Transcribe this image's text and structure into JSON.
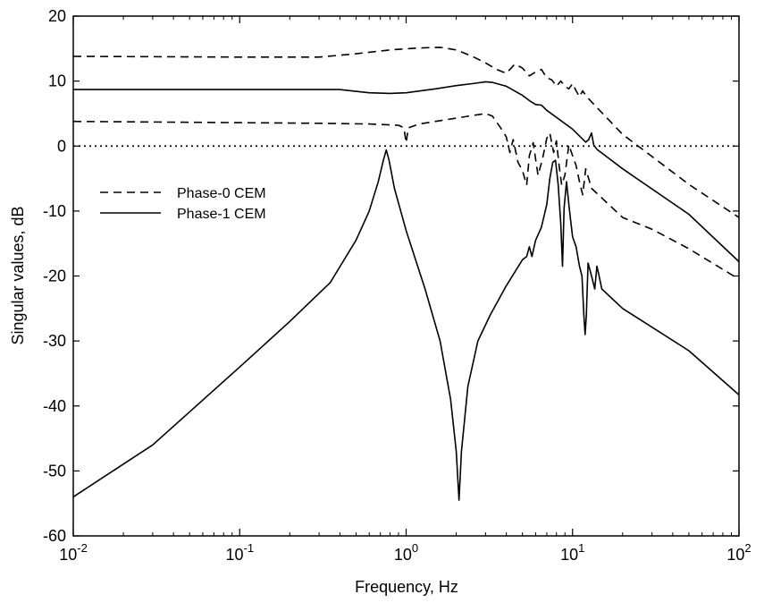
{
  "chart_data": {
    "type": "line",
    "title": "",
    "xlabel": "Frequency, Hz",
    "ylabel": "Singular values, dB",
    "xscale": "log",
    "xlim": [
      0.01,
      100
    ],
    "ylim": [
      -60,
      20
    ],
    "x_ticks": [
      {
        "value": 0.01,
        "base": "10",
        "exp": "-2"
      },
      {
        "value": 0.1,
        "base": "10",
        "exp": "-1"
      },
      {
        "value": 1,
        "base": "10",
        "exp": "0"
      },
      {
        "value": 10,
        "base": "10",
        "exp": "1"
      },
      {
        "value": 100,
        "base": "10",
        "exp": "2"
      }
    ],
    "y_ticks": [
      {
        "value": 20,
        "label": "20"
      },
      {
        "value": 10,
        "label": "10"
      },
      {
        "value": 0,
        "label": "0"
      },
      {
        "value": -10,
        "label": "-10"
      },
      {
        "value": -20,
        "label": "-20"
      },
      {
        "value": -30,
        "label": "-30"
      },
      {
        "value": -40,
        "label": "-40"
      },
      {
        "value": -50,
        "label": "-50"
      },
      {
        "value": -60,
        "label": "-60"
      }
    ],
    "grid": false,
    "legend": {
      "position": "middle-left",
      "entries": [
        {
          "label": "Phase-0 CEM",
          "style": "dashed"
        },
        {
          "label": "Phase-1 CEM",
          "style": "solid"
        }
      ]
    },
    "reference_line": {
      "y": 0,
      "style": "dotted"
    },
    "series": [
      {
        "name": "Phase-0 CEM",
        "style": "dashed",
        "points": [
          [
            0.01,
            13.8
          ],
          [
            0.1,
            13.7
          ],
          [
            0.3,
            13.7
          ],
          [
            0.5,
            14.2
          ],
          [
            0.8,
            14.8
          ],
          [
            1.2,
            15.1
          ],
          [
            1.6,
            15.2
          ],
          [
            2,
            14.8
          ],
          [
            2.5,
            13.8
          ],
          [
            3,
            12.8
          ],
          [
            3.5,
            11.8
          ],
          [
            4,
            11.2
          ],
          [
            4.5,
            12.6
          ],
          [
            5,
            12.0
          ],
          [
            5.5,
            10.8
          ],
          [
            6,
            11.4
          ],
          [
            6.5,
            11.8
          ],
          [
            7,
            10.5
          ],
          [
            7.5,
            10.2
          ],
          [
            8,
            9.2
          ],
          [
            8.5,
            10.0
          ],
          [
            9,
            9.2
          ],
          [
            9.5,
            8.8
          ],
          [
            10,
            9.6
          ],
          [
            10.5,
            8.5
          ],
          [
            11,
            7.6
          ],
          [
            11.5,
            8.5
          ],
          [
            12,
            7.8
          ],
          [
            13,
            6.8
          ],
          [
            20,
            1.8
          ],
          [
            30,
            -1.6
          ],
          [
            50,
            -5.9
          ],
          [
            100,
            -11.0
          ]
        ]
      },
      {
        "name": "Phase-0 CEM",
        "style": "dashed",
        "points": [
          [
            0.01,
            3.8
          ],
          [
            0.1,
            3.6
          ],
          [
            0.3,
            3.5
          ],
          [
            0.6,
            3.4
          ],
          [
            0.9,
            3.2
          ],
          [
            0.97,
            2.8
          ],
          [
            1.0,
            0.5
          ],
          [
            1.03,
            2.8
          ],
          [
            1.2,
            3.4
          ],
          [
            2,
            4.3
          ],
          [
            3,
            5.0
          ],
          [
            3.3,
            4.6
          ],
          [
            3.7,
            2.8
          ],
          [
            4,
            1.4
          ],
          [
            4.2,
            -1.0
          ],
          [
            4.4,
            1.0
          ],
          [
            4.7,
            -2.5
          ],
          [
            5,
            -3.8
          ],
          [
            5.3,
            -6.0
          ],
          [
            5.5,
            -1.5
          ],
          [
            5.8,
            0.5
          ],
          [
            6.2,
            -4.5
          ],
          [
            6.6,
            -2.0
          ],
          [
            7,
            1.2
          ],
          [
            7.3,
            2.0
          ],
          [
            7.7,
            -1.0
          ],
          [
            8,
            0.8
          ],
          [
            8.3,
            -3.0
          ],
          [
            8.6,
            -6.0
          ],
          [
            9,
            -4.5
          ],
          [
            9.5,
            0.2
          ],
          [
            10,
            -1.5
          ],
          [
            10.5,
            -3.0
          ],
          [
            11,
            -5.5
          ],
          [
            11.5,
            -7.5
          ],
          [
            12,
            -3.5
          ],
          [
            13,
            -6.5
          ],
          [
            20,
            -11.0
          ],
          [
            30,
            -12.8
          ],
          [
            50,
            -15.8
          ],
          [
            100,
            -20.5
          ]
        ]
      },
      {
        "name": "Phase-1 CEM",
        "style": "solid",
        "points": [
          [
            0.01,
            8.7
          ],
          [
            0.1,
            8.7
          ],
          [
            0.4,
            8.7
          ],
          [
            0.6,
            8.2
          ],
          [
            0.8,
            8.1
          ],
          [
            1.0,
            8.2
          ],
          [
            1.5,
            8.8
          ],
          [
            2,
            9.3
          ],
          [
            2.5,
            9.6
          ],
          [
            3,
            9.9
          ],
          [
            3.3,
            9.8
          ],
          [
            4,
            9.2
          ],
          [
            5,
            7.8
          ],
          [
            5.5,
            7.0
          ],
          [
            6,
            6.4
          ],
          [
            6.5,
            6.3
          ],
          [
            7,
            5.5
          ],
          [
            10,
            2.6
          ],
          [
            12,
            0.6
          ],
          [
            12.5,
            1.0
          ],
          [
            13,
            2.0
          ],
          [
            13.4,
            0.2
          ],
          [
            14,
            -0.5
          ],
          [
            20,
            -3.5
          ],
          [
            50,
            -10.5
          ],
          [
            100,
            -17.8
          ]
        ]
      },
      {
        "name": "Phase-1 CEM",
        "style": "solid",
        "points": [
          [
            0.01,
            -54.0
          ],
          [
            0.03,
            -46.0
          ],
          [
            0.1,
            -34.0
          ],
          [
            0.2,
            -27.0
          ],
          [
            0.35,
            -21.0
          ],
          [
            0.5,
            -14.5
          ],
          [
            0.6,
            -10.0
          ],
          [
            0.68,
            -5.5
          ],
          [
            0.73,
            -2.2
          ],
          [
            0.76,
            -0.6
          ],
          [
            0.79,
            -2.2
          ],
          [
            0.85,
            -6.5
          ],
          [
            1.0,
            -13.0
          ],
          [
            1.3,
            -22.0
          ],
          [
            1.6,
            -30.0
          ],
          [
            1.85,
            -39.0
          ],
          [
            2.0,
            -47.0
          ],
          [
            2.08,
            -54.5
          ],
          [
            2.15,
            -47.0
          ],
          [
            2.35,
            -37.0
          ],
          [
            2.7,
            -30.0
          ],
          [
            3.2,
            -26.0
          ],
          [
            4,
            -21.5
          ],
          [
            5,
            -17.5
          ],
          [
            5.3,
            -17.0
          ],
          [
            5.5,
            -15.5
          ],
          [
            5.7,
            -17.0
          ],
          [
            6,
            -14.5
          ],
          [
            6.5,
            -12.5
          ],
          [
            7,
            -9.0
          ],
          [
            7.3,
            -5.0
          ],
          [
            7.6,
            -2.5
          ],
          [
            7.9,
            -2.2
          ],
          [
            8.2,
            -6.0
          ],
          [
            8.5,
            -12.0
          ],
          [
            8.7,
            -18.5
          ],
          [
            8.9,
            -9.5
          ],
          [
            9.2,
            -5.5
          ],
          [
            9.6,
            -10.0
          ],
          [
            10,
            -14.0
          ],
          [
            10.5,
            -15.5
          ],
          [
            11,
            -18.5
          ],
          [
            11.4,
            -20.0
          ],
          [
            11.7,
            -26.0
          ],
          [
            11.9,
            -29.0
          ],
          [
            12.1,
            -26.0
          ],
          [
            12.4,
            -18.0
          ],
          [
            13,
            -20.0
          ],
          [
            13.6,
            -22.0
          ],
          [
            14.0,
            -18.5
          ],
          [
            14.3,
            -19.5
          ],
          [
            15,
            -22.0
          ],
          [
            20,
            -25.0
          ],
          [
            50,
            -31.5
          ],
          [
            100,
            -38.3
          ]
        ]
      }
    ]
  }
}
